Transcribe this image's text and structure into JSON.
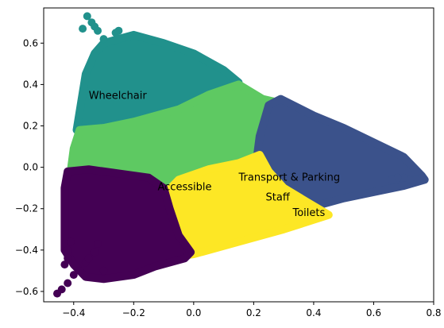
{
  "chart_data": {
    "type": "scatter",
    "title": "",
    "xlabel": "",
    "ylabel": "",
    "xlim": [
      -0.5,
      0.8
    ],
    "ylim": [
      -0.65,
      0.77
    ],
    "x_ticks": [
      -0.4,
      -0.2,
      0.0,
      0.2,
      0.4,
      0.6,
      0.8
    ],
    "y_ticks": [
      -0.6,
      -0.4,
      -0.2,
      0.0,
      0.2,
      0.4,
      0.6
    ],
    "x_tick_labels": [
      "−0.4",
      "−0.2",
      "0.0",
      "0.2",
      "0.4",
      "0.6",
      "0.8"
    ],
    "y_tick_labels": [
      "−0.6",
      "−0.4",
      "−0.2",
      "0.0",
      "0.2",
      "0.4",
      "0.6"
    ],
    "grid": false,
    "legend": "none",
    "clusters": [
      {
        "color": "#21918c",
        "region": [
          [
            -0.39,
            0.18
          ],
          [
            -0.36,
            0.45
          ],
          [
            -0.33,
            0.55
          ],
          [
            -0.3,
            0.6
          ],
          [
            -0.25,
            0.62
          ],
          [
            -0.2,
            0.64
          ],
          [
            -0.1,
            0.6
          ],
          [
            0.0,
            0.55
          ],
          [
            0.1,
            0.47
          ],
          [
            0.15,
            0.41
          ],
          [
            0.05,
            0.35
          ],
          [
            -0.05,
            0.28
          ],
          [
            -0.2,
            0.22
          ],
          [
            -0.3,
            0.19
          ]
        ],
        "points": [
          [
            -0.355,
            0.73
          ],
          [
            -0.34,
            0.7
          ],
          [
            -0.33,
            0.68
          ],
          [
            -0.37,
            0.67
          ],
          [
            -0.25,
            0.66
          ],
          [
            -0.26,
            0.65
          ],
          [
            -0.32,
            0.66
          ],
          [
            -0.3,
            0.62
          ]
        ]
      },
      {
        "color": "#5ec962",
        "region": [
          [
            -0.41,
            -0.02
          ],
          [
            -0.4,
            0.09
          ],
          [
            -0.38,
            0.18
          ],
          [
            -0.3,
            0.19
          ],
          [
            -0.2,
            0.22
          ],
          [
            -0.05,
            0.28
          ],
          [
            0.05,
            0.35
          ],
          [
            0.15,
            0.4
          ],
          [
            0.23,
            0.33
          ],
          [
            0.29,
            0.31
          ],
          [
            0.25,
            0.25
          ],
          [
            0.23,
            0.15
          ],
          [
            0.22,
            0.07
          ],
          [
            0.15,
            0.02
          ],
          [
            0.05,
            -0.01
          ],
          [
            -0.05,
            -0.05
          ],
          [
            -0.1,
            -0.09
          ],
          [
            -0.2,
            -0.04
          ],
          [
            -0.3,
            -0.02
          ],
          [
            -0.38,
            -0.01
          ]
        ],
        "points": []
      },
      {
        "color": "#3b528b",
        "region": [
          [
            0.25,
            0.3
          ],
          [
            0.29,
            0.33
          ],
          [
            0.4,
            0.25
          ],
          [
            0.5,
            0.19
          ],
          [
            0.6,
            0.12
          ],
          [
            0.7,
            0.05
          ],
          [
            0.76,
            -0.04
          ],
          [
            0.77,
            -0.06
          ],
          [
            0.7,
            -0.09
          ],
          [
            0.6,
            -0.12
          ],
          [
            0.5,
            -0.15
          ],
          [
            0.4,
            -0.19
          ],
          [
            0.3,
            -0.19
          ],
          [
            0.25,
            -0.08
          ],
          [
            0.21,
            0.04
          ],
          [
            0.22,
            0.15
          ],
          [
            0.24,
            0.25
          ]
        ],
        "points": [
          [
            0.76,
            -0.05
          ],
          [
            0.74,
            -0.06
          ],
          [
            0.72,
            -0.06
          ],
          [
            0.7,
            -0.05
          ],
          [
            0.68,
            -0.05
          ],
          [
            0.66,
            -0.06
          ]
        ]
      },
      {
        "color": "#fde725",
        "region": [
          [
            -0.09,
            -0.12
          ],
          [
            -0.05,
            -0.06
          ],
          [
            0.05,
            -0.01
          ],
          [
            0.15,
            0.02
          ],
          [
            0.22,
            0.06
          ],
          [
            0.25,
            -0.02
          ],
          [
            0.3,
            -0.1
          ],
          [
            0.38,
            -0.17
          ],
          [
            0.45,
            -0.23
          ],
          [
            0.3,
            -0.3
          ],
          [
            0.15,
            -0.36
          ],
          [
            0.0,
            -0.42
          ],
          [
            -0.05,
            -0.43
          ],
          [
            -0.08,
            -0.3
          ],
          [
            -0.1,
            -0.2
          ]
        ],
        "points": []
      },
      {
        "color": "#440154",
        "region": [
          [
            -0.42,
            -0.02
          ],
          [
            -0.35,
            -0.01
          ],
          [
            -0.25,
            -0.03
          ],
          [
            -0.15,
            -0.05
          ],
          [
            -0.1,
            -0.1
          ],
          [
            -0.08,
            -0.2
          ],
          [
            -0.05,
            -0.33
          ],
          [
            -0.01,
            -0.41
          ],
          [
            -0.03,
            -0.44
          ],
          [
            -0.13,
            -0.48
          ],
          [
            -0.2,
            -0.52
          ],
          [
            -0.3,
            -0.54
          ],
          [
            -0.36,
            -0.53
          ],
          [
            -0.4,
            -0.47
          ],
          [
            -0.43,
            -0.4
          ],
          [
            -0.43,
            -0.25
          ],
          [
            -0.43,
            -0.1
          ]
        ],
        "points": [
          [
            -0.455,
            -0.61
          ],
          [
            -0.44,
            -0.59
          ],
          [
            -0.42,
            -0.56
          ],
          [
            -0.4,
            -0.52
          ],
          [
            -0.38,
            -0.5
          ],
          [
            -0.36,
            -0.46
          ],
          [
            -0.35,
            -0.44
          ],
          [
            -0.43,
            -0.47
          ],
          [
            -0.42,
            -0.44
          ],
          [
            -0.42,
            -0.4
          ],
          [
            -0.41,
            -0.36
          ],
          [
            -0.3,
            -0.5
          ],
          [
            -0.33,
            -0.41
          ],
          [
            -0.32,
            -0.37
          ]
        ]
      }
    ],
    "annotations": [
      {
        "text": "Wheelchair",
        "x": -0.35,
        "y": 0.33
      },
      {
        "text": "Accessible",
        "x": -0.12,
        "y": -0.11
      },
      {
        "text": "Transport & Parking",
        "x": 0.15,
        "y": -0.065
      },
      {
        "text": "Staff",
        "x": 0.24,
        "y": -0.16
      },
      {
        "text": "Toilets",
        "x": 0.33,
        "y": -0.235
      }
    ]
  }
}
